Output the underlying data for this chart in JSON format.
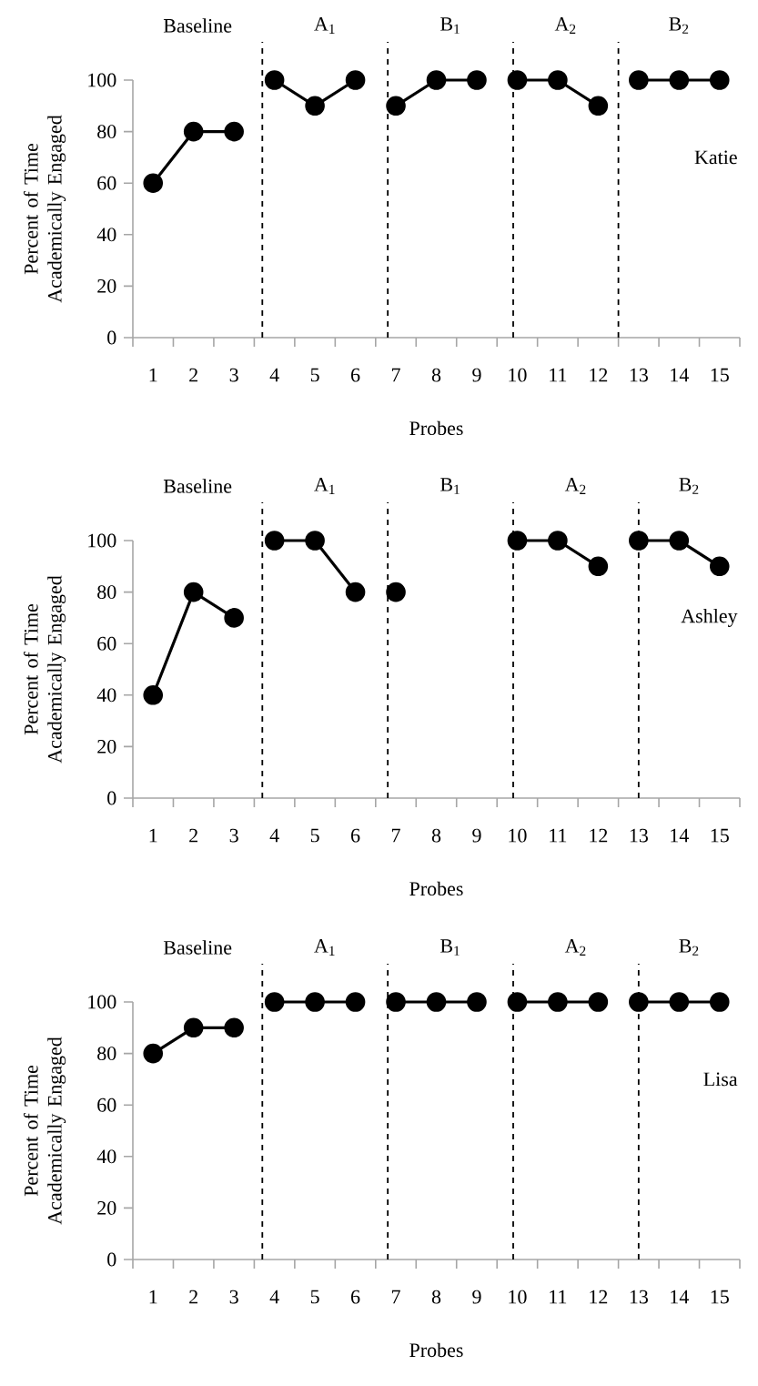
{
  "chart_data": [
    {
      "type": "line",
      "xlabel": "Probes",
      "ylabel": "Percent of Time Academically Engaged",
      "marker": "circle",
      "line_style": "solid",
      "xlim": [
        0.5,
        15.5
      ],
      "xticks": [
        1,
        2,
        3,
        4,
        5,
        6,
        7,
        8,
        9,
        10,
        11,
        12,
        13,
        14,
        15
      ],
      "ylim": [
        0,
        100
      ],
      "yticks": [
        0,
        20,
        40,
        60,
        80,
        100
      ],
      "series": [
        {
          "color": "#000000",
          "x": [
            1,
            2,
            3
          ],
          "values": [
            60,
            80,
            80
          ]
        },
        {
          "color": "#000000",
          "x": [
            4,
            5,
            6
          ],
          "values": [
            100,
            90,
            100
          ]
        },
        {
          "color": "#000000",
          "x": [
            7,
            8,
            9
          ],
          "values": [
            90,
            100,
            100
          ]
        },
        {
          "color": "#000000",
          "x": [
            10,
            11,
            12
          ],
          "values": [
            100,
            100,
            90
          ]
        },
        {
          "color": "#000000",
          "x": [
            13,
            14,
            15
          ],
          "values": [
            100,
            100,
            100
          ]
        }
      ],
      "ref_lines": [
        {
          "axis": "x",
          "value": 3.7,
          "color": "#000000",
          "line_style": "dashed"
        },
        {
          "axis": "x",
          "value": 6.8,
          "color": "#000000",
          "line_style": "dashed"
        },
        {
          "axis": "x",
          "value": 9.9,
          "color": "#000000",
          "line_style": "dashed"
        },
        {
          "axis": "x",
          "value": 12.5,
          "color": "#000000",
          "line_style": "dashed"
        }
      ],
      "annotations": [
        "Baseline",
        "A$_{1}$",
        "B$_{1}$",
        "A$_{2}$",
        "B$_{2}$",
        "Katie"
      ]
    },
    {
      "type": "line",
      "xlabel": "Probes",
      "ylabel": "Percent of Time Academically Engaged",
      "marker": "circle",
      "line_style": "solid",
      "xlim": [
        0.5,
        15.5
      ],
      "xticks": [
        1,
        2,
        3,
        4,
        5,
        6,
        7,
        8,
        9,
        10,
        11,
        12,
        13,
        14,
        15
      ],
      "ylim": [
        0,
        100
      ],
      "yticks": [
        0,
        20,
        40,
        60,
        80,
        100
      ],
      "series": [
        {
          "color": "#000000",
          "x": [
            1,
            2,
            3
          ],
          "values": [
            40,
            80,
            70
          ]
        },
        {
          "color": "#000000",
          "x": [
            4,
            5,
            6
          ],
          "values": [
            100,
            100,
            80
          ]
        },
        {
          "color": "#000000",
          "x": [
            7
          ],
          "values": [
            80
          ]
        },
        {
          "color": "#000000",
          "x": [
            10,
            11,
            12
          ],
          "values": [
            100,
            100,
            90
          ]
        },
        {
          "color": "#000000",
          "x": [
            13,
            14,
            15
          ],
          "values": [
            100,
            100,
            90
          ]
        }
      ],
      "ref_lines": [
        {
          "axis": "x",
          "value": 3.7,
          "color": "#000000",
          "line_style": "dashed"
        },
        {
          "axis": "x",
          "value": 6.8,
          "color": "#000000",
          "line_style": "dashed"
        },
        {
          "axis": "x",
          "value": 9.9,
          "color": "#000000",
          "line_style": "dashed"
        },
        {
          "axis": "x",
          "value": 13.0,
          "color": "#000000",
          "line_style": "dashed"
        }
      ],
      "annotations": [
        "Baseline",
        "A$_{1}$",
        "B$_{1}$",
        "A$_{2}$",
        "B$_{2}$",
        "Ashley"
      ]
    },
    {
      "type": "line",
      "xlabel": "Probes",
      "ylabel": "Percent of Time Academically Engaged",
      "marker": "circle",
      "line_style": "solid",
      "xlim": [
        0.5,
        15.5
      ],
      "xticks": [
        1,
        2,
        3,
        4,
        5,
        6,
        7,
        8,
        9,
        10,
        11,
        12,
        13,
        14,
        15
      ],
      "ylim": [
        0,
        100
      ],
      "yticks": [
        0,
        20,
        40,
        60,
        80,
        100
      ],
      "series": [
        {
          "color": "#000000",
          "x": [
            1,
            2,
            3
          ],
          "values": [
            80,
            90,
            90
          ]
        },
        {
          "color": "#000000",
          "x": [
            4,
            5,
            6
          ],
          "values": [
            100,
            100,
            100
          ]
        },
        {
          "color": "#000000",
          "x": [
            7,
            8,
            9
          ],
          "values": [
            100,
            100,
            100
          ]
        },
        {
          "color": "#000000",
          "x": [
            10,
            11,
            12
          ],
          "values": [
            100,
            100,
            100
          ]
        },
        {
          "color": "#000000",
          "x": [
            13,
            14,
            15
          ],
          "values": [
            100,
            100,
            100
          ]
        }
      ],
      "ref_lines": [
        {
          "axis": "x",
          "value": 3.7,
          "color": "#000000",
          "line_style": "dashed"
        },
        {
          "axis": "x",
          "value": 6.8,
          "color": "#000000",
          "line_style": "dashed"
        },
        {
          "axis": "x",
          "value": 9.9,
          "color": "#000000",
          "line_style": "dashed"
        },
        {
          "axis": "x",
          "value": 13.0,
          "color": "#000000",
          "line_style": "dashed"
        }
      ],
      "annotations": [
        "Baseline",
        "A$_{1}$",
        "B$_{1}$",
        "A$_{2}$",
        "B$_{2}$",
        "Lisa"
      ]
    }
  ]
}
